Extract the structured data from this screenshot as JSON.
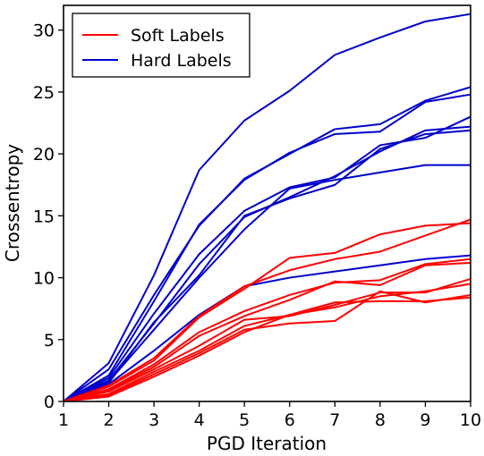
{
  "chart_data": {
    "type": "line",
    "xlabel": "PGD Iteration",
    "ylabel": "Crossentropy",
    "x": [
      1,
      2,
      3,
      4,
      5,
      6,
      7,
      8,
      9,
      10
    ],
    "xlim": [
      1,
      10
    ],
    "ylim": [
      0,
      32
    ],
    "xticks": [
      "1",
      "2",
      "3",
      "4",
      "5",
      "6",
      "7",
      "8",
      "9",
      "10"
    ],
    "yticks": [
      "0",
      "5",
      "10",
      "15",
      "20",
      "25",
      "30"
    ],
    "grid": false,
    "legend": {
      "position": "top-left",
      "entries": [
        {
          "label": "Soft Labels",
          "color": "#ff0000"
        },
        {
          "label": "Hard Labels",
          "color": "#0000cc"
        }
      ]
    },
    "groups": [
      {
        "label": "Hard Labels",
        "color": "#0000cc",
        "lines": [
          [
            0,
            3.1,
            10.2,
            18.7,
            22.7,
            25.1,
            28.0,
            29.4,
            30.7,
            31.3
          ],
          [
            0,
            2.6,
            8.6,
            14.2,
            18.0,
            20.0,
            22.0,
            22.4,
            24.3,
            25.4
          ],
          [
            0,
            2.1,
            8.1,
            14.3,
            17.9,
            20.1,
            21.6,
            21.8,
            24.2,
            24.8
          ],
          [
            0,
            1.9,
            7.1,
            11.9,
            15.4,
            17.3,
            18.1,
            20.7,
            21.3,
            23.0
          ],
          [
            0,
            1.7,
            6.3,
            11.1,
            14.9,
            16.5,
            18.2,
            20.2,
            21.9,
            22.2
          ],
          [
            0,
            1.5,
            6.4,
            10.2,
            15.0,
            16.4,
            17.5,
            20.4,
            21.6,
            21.9
          ],
          [
            0,
            1.6,
            5.8,
            10.0,
            13.9,
            17.2,
            17.9,
            18.5,
            19.1,
            19.1
          ],
          [
            0,
            1.4,
            4.1,
            7.0,
            9.3,
            10.0,
            10.5,
            11.0,
            11.5,
            11.8
          ]
        ]
      },
      {
        "label": "Soft Labels",
        "color": "#ff0000",
        "lines": [
          [
            0,
            1.3,
            3.5,
            6.9,
            9.3,
            10.6,
            11.5,
            12.1,
            13.4,
            14.7
          ],
          [
            0,
            1.2,
            3.3,
            6.8,
            9.1,
            11.6,
            12.0,
            13.5,
            14.2,
            14.4
          ],
          [
            0,
            1.0,
            3.0,
            5.6,
            7.3,
            8.6,
            9.6,
            9.8,
            11.1,
            11.5
          ],
          [
            0,
            0.9,
            2.8,
            5.3,
            6.9,
            8.2,
            9.7,
            9.4,
            11.0,
            11.2
          ],
          [
            0,
            0.8,
            2.6,
            4.5,
            6.6,
            6.9,
            7.8,
            8.8,
            8.8,
            9.9
          ],
          [
            0,
            0.6,
            2.4,
            4.1,
            6.1,
            7.0,
            7.6,
            8.5,
            8.9,
            9.5
          ],
          [
            0,
            0.5,
            2.2,
            3.9,
            5.8,
            6.3,
            6.5,
            8.9,
            8.0,
            8.6
          ],
          [
            0,
            0.4,
            2.0,
            3.7,
            5.6,
            7.0,
            8.0,
            8.1,
            8.1,
            8.4
          ]
        ]
      }
    ]
  }
}
